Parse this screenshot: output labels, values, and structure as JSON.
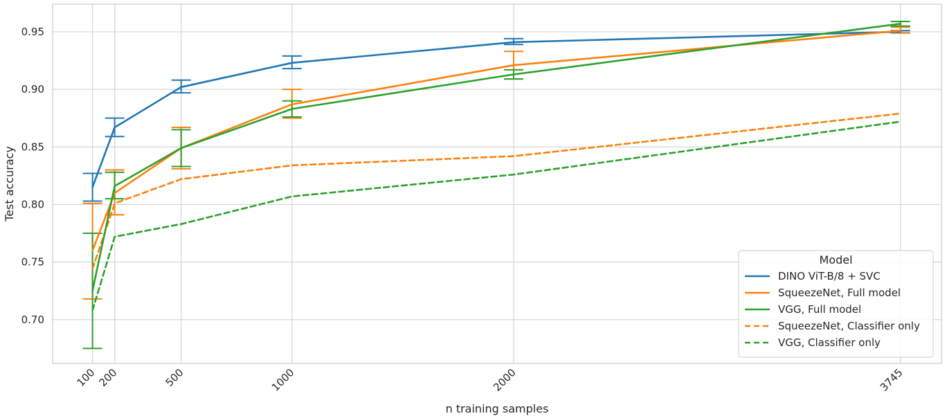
{
  "chart_data": {
    "type": "line",
    "xlabel": "n training samples",
    "ylabel": "Test accuracy",
    "x": [
      100,
      200,
      500,
      1000,
      2000,
      3745
    ],
    "x_tick_labels": [
      "100",
      "200",
      "500",
      "1000",
      "2000",
      "3745"
    ],
    "xlim": [
      -80,
      3930
    ],
    "ylim": [
      0.662,
      0.974
    ],
    "y_ticks": [
      0.7,
      0.75,
      0.8,
      0.85,
      0.9,
      0.95
    ],
    "y_tick_labels": [
      "0.70",
      "0.75",
      "0.80",
      "0.85",
      "0.90",
      "0.95"
    ],
    "grid": true,
    "legend": {
      "title": "Model",
      "placement": "lower-right"
    },
    "series": [
      {
        "name": "DINO ViT-B/8 + SVC",
        "color": "#1f77b4",
        "dashed": false,
        "values": [
          0.815,
          0.867,
          0.902,
          0.923,
          0.941,
          0.95
        ],
        "errors": [
          [
            0.803,
            0.827
          ],
          [
            0.859,
            0.875
          ],
          [
            0.897,
            0.908
          ],
          [
            0.918,
            0.929
          ],
          [
            0.939,
            0.944
          ],
          [
            0.949,
            0.951
          ]
        ]
      },
      {
        "name": "SqueezeNet, Full model",
        "color": "#ff7f0e",
        "dashed": false,
        "values": [
          0.76,
          0.81,
          0.849,
          0.887,
          0.921,
          0.951
        ],
        "errors": [
          [
            0.718,
            0.801
          ],
          [
            0.791,
            0.83
          ],
          [
            0.831,
            0.867
          ],
          [
            0.875,
            0.9
          ],
          [
            0.909,
            0.933
          ],
          [
            0.949,
            0.954
          ]
        ]
      },
      {
        "name": "VGG, Full model",
        "color": "#2ca02c",
        "dashed": false,
        "values": [
          0.725,
          0.816,
          0.849,
          0.883,
          0.913,
          0.957
        ],
        "errors": [
          [
            0.675,
            0.775
          ],
          [
            0.805,
            0.828
          ],
          [
            0.833,
            0.865
          ],
          [
            0.876,
            0.89
          ],
          [
            0.909,
            0.917
          ],
          [
            0.955,
            0.959
          ]
        ]
      },
      {
        "name": "SqueezeNet, Classifier only",
        "color": "#ff7f0e",
        "dashed": true,
        "values": [
          0.744,
          0.801,
          0.822,
          0.834,
          0.842,
          0.879
        ],
        "errors": []
      },
      {
        "name": "VGG, Classifier only",
        "color": "#2ca02c",
        "dashed": true,
        "values": [
          0.708,
          0.772,
          0.783,
          0.807,
          0.826,
          0.872
        ],
        "errors": []
      }
    ]
  }
}
